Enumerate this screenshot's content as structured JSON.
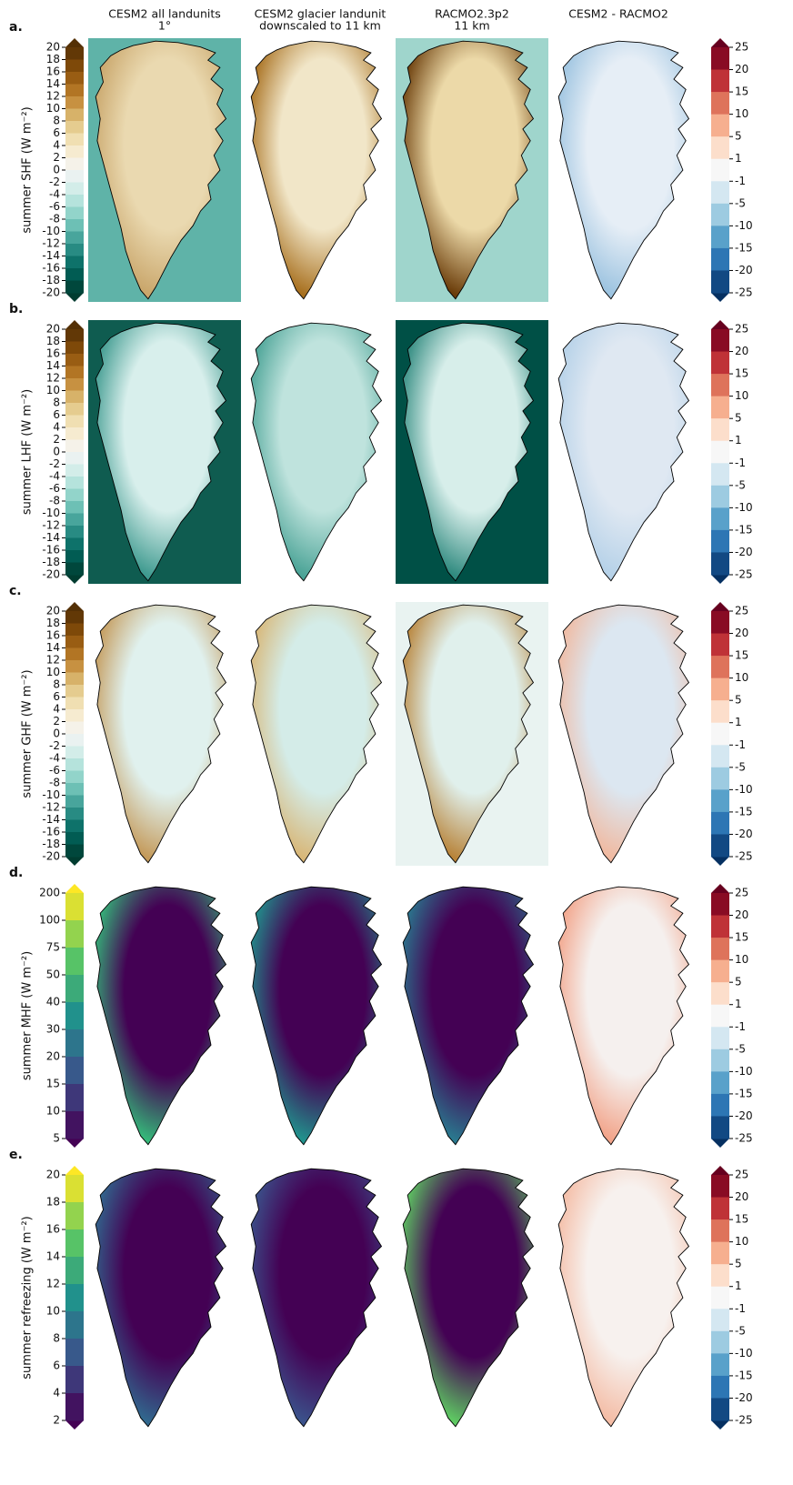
{
  "columns": [
    [
      "CESM2 all landunits",
      "1°"
    ],
    [
      "CESM2 glacier landunit",
      "downscaled to 11 km"
    ],
    [
      "RACMO2.3p2",
      "11 km"
    ],
    [
      "CESM2 - RACMO2"
    ]
  ],
  "rows": [
    {
      "letter": "a.",
      "label": "summer SHF (W m⁻²)",
      "ticks": [
        20,
        18,
        16,
        14,
        12,
        10,
        8,
        6,
        4,
        2,
        0,
        -2,
        -4,
        -6,
        -8,
        -10,
        -12,
        -14,
        -16,
        -18,
        -20
      ]
    },
    {
      "letter": "b.",
      "label": "summer LHF (W m⁻²)",
      "ticks": [
        20,
        18,
        16,
        14,
        12,
        10,
        8,
        6,
        4,
        2,
        0,
        -2,
        -4,
        -6,
        -8,
        -10,
        -12,
        -14,
        -16,
        -18,
        -20
      ]
    },
    {
      "letter": "c.",
      "label": "summer GHF (W m⁻²)",
      "ticks": [
        20,
        18,
        16,
        14,
        12,
        10,
        8,
        6,
        4,
        2,
        0,
        -2,
        -4,
        -6,
        -8,
        -10,
        -12,
        -14,
        -16,
        -18,
        -20
      ]
    },
    {
      "letter": "d.",
      "label": "summer MHF (W m⁻²)",
      "ticks": [
        200,
        100,
        75,
        50,
        40,
        30,
        20,
        15,
        10,
        5
      ]
    },
    {
      "letter": "e.",
      "label": "summer refreezing (W m⁻²)",
      "ticks": [
        20,
        18,
        16,
        14,
        12,
        10,
        8,
        6,
        4,
        2
      ]
    }
  ],
  "diff_ticks": [
    25,
    20,
    15,
    10,
    5,
    1,
    -1,
    -5,
    -10,
    -15,
    -20,
    -25
  ]
}
